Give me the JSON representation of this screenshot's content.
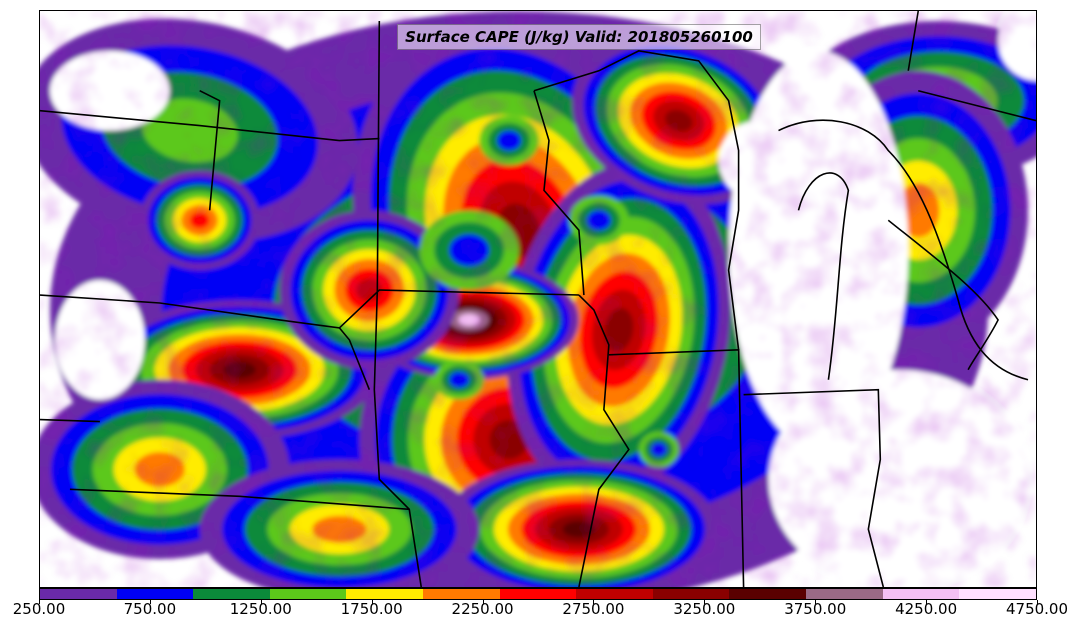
{
  "title": "Surface CAPE (J/kg) Valid: 201805260100",
  "colorbar": {
    "colors": [
      "#6a2aa8",
      "#0000f5",
      "#0b8a3a",
      "#5cc81a",
      "#ffec00",
      "#ff7a00",
      "#ff0000",
      "#c00000",
      "#8a0000",
      "#5a0000",
      "#9a6a86",
      "#f4c0f4",
      "#ffe0ff"
    ],
    "tick_labels": [
      "250.00",
      "750.00",
      "1250.00",
      "1750.00",
      "2250.00",
      "2750.00",
      "3250.00",
      "3750.00",
      "4250.00",
      "4750.00"
    ],
    "min": 250,
    "max": 4750
  },
  "legend_colors": {
    "border": "#000000",
    "background": "#ffffff"
  }
}
